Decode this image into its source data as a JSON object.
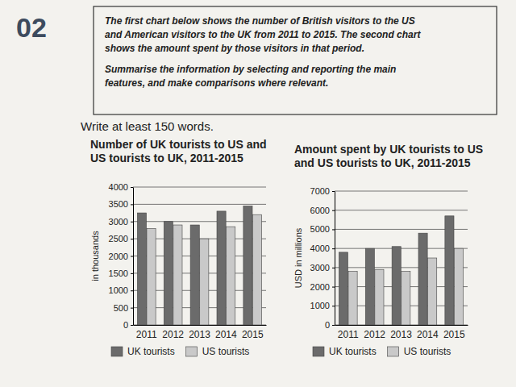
{
  "page": {
    "number": "02",
    "task_paragraphs": [
      [
        "The first chart below shows the number of British visitors to the US",
        "and American visitors to the UK from 2011 to 2015. The second chart",
        "shows the amount spent by those visitors in that period."
      ],
      [
        "Summarise the information by selecting and reporting the main",
        "features, and make comparisons where relevant."
      ]
    ],
    "instruction": "Write at least 150 words."
  },
  "chart_data": [
    {
      "type": "bar",
      "title": "Number of UK tourists to US and US tourists to UK, 2011-2015",
      "ylabel": "in thousands",
      "categories": [
        "2011",
        "2012",
        "2013",
        "2014",
        "2015"
      ],
      "series": [
        {
          "name": "UK tourists",
          "color": "#6b6b6b",
          "values": [
            3250,
            3000,
            2900,
            3300,
            3450
          ]
        },
        {
          "name": "US tourists",
          "color": "#c9c9c9",
          "values": [
            2800,
            2900,
            2500,
            2850,
            3200
          ]
        }
      ],
      "ylim": [
        0,
        4000
      ],
      "yticks": [
        0,
        500,
        1000,
        1500,
        2000,
        2500,
        3000,
        3500,
        4000
      ],
      "grid": true,
      "legend": "bottom"
    },
    {
      "type": "bar",
      "title": "Amount spent by UK tourists to US and US tourists to UK, 2011-2015",
      "ylabel": "USD in millions",
      "categories": [
        "2011",
        "2012",
        "2013",
        "2014",
        "2015"
      ],
      "series": [
        {
          "name": "UK tourists",
          "color": "#6b6b6b",
          "values": [
            3800,
            4000,
            4100,
            4800,
            5700
          ]
        },
        {
          "name": "US tourists",
          "color": "#c9c9c9",
          "values": [
            2800,
            2900,
            2800,
            3500,
            4000
          ]
        }
      ],
      "ylim": [
        0,
        7000
      ],
      "yticks": [
        0,
        1000,
        2000,
        3000,
        4000,
        5000,
        6000,
        7000
      ],
      "grid": true,
      "legend": "bottom"
    }
  ]
}
